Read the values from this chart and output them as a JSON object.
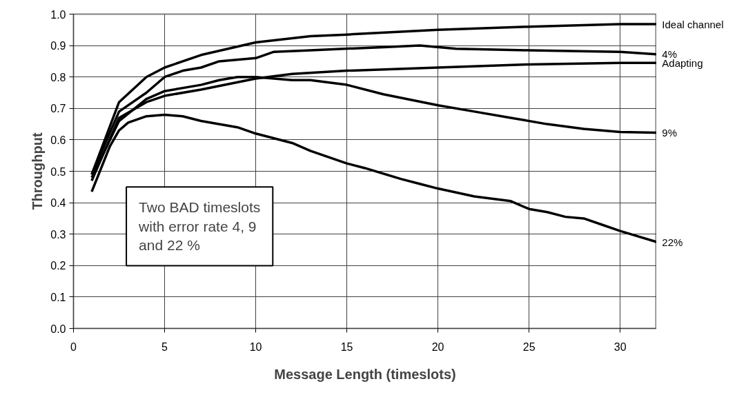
{
  "chart_data": {
    "type": "line",
    "xlabel": "Message Length (timeslots)",
    "ylabel": "Throughput",
    "xlim": [
      0,
      32
    ],
    "xticks": [
      0,
      5,
      10,
      15,
      20,
      25,
      30
    ],
    "ylim": [
      0,
      1
    ],
    "yticks": [
      {
        "value": 0,
        "label": "0.0"
      },
      0.1,
      0.2,
      0.3,
      0.4,
      0.5,
      0.6,
      0.7,
      0.8,
      0.9,
      {
        "value": 1,
        "label": "1.0"
      }
    ],
    "grid": true,
    "legend": false,
    "marker": "none",
    "line_style": "solid",
    "annotations": [
      "Two BAD timeslots\nwith error rate 4, 9\nand 22 %"
    ],
    "series": [
      {
        "name": "Ideal channel",
        "color": "#000000",
        "x": [
          1,
          2.5,
          4,
          5,
          7,
          10,
          13,
          15,
          20,
          25,
          30,
          32
        ],
        "values": [
          0.49,
          0.72,
          0.8,
          0.83,
          0.87,
          0.91,
          0.93,
          0.935,
          0.95,
          0.96,
          0.968,
          0.968
        ]
      },
      {
        "name": "4%",
        "color": "#000000",
        "x": [
          1,
          2.5,
          4,
          5,
          6,
          7,
          8,
          10,
          11,
          13,
          17,
          19,
          21,
          25,
          30,
          32
        ],
        "values": [
          0.49,
          0.69,
          0.75,
          0.8,
          0.82,
          0.83,
          0.85,
          0.86,
          0.88,
          0.885,
          0.895,
          0.9,
          0.89,
          0.885,
          0.88,
          0.872
        ]
      },
      {
        "name": "Adapting",
        "color": "#000000",
        "x": [
          1,
          2.5,
          4,
          5,
          7,
          10,
          12,
          15,
          20,
          25,
          30,
          32
        ],
        "values": [
          0.47,
          0.67,
          0.72,
          0.74,
          0.76,
          0.795,
          0.81,
          0.82,
          0.83,
          0.84,
          0.845,
          0.845
        ]
      },
      {
        "name": "9%",
        "color": "#000000",
        "x": [
          1,
          2.5,
          4,
          5,
          7,
          8,
          9,
          10,
          12,
          13,
          15,
          17,
          20,
          22,
          24,
          26,
          28,
          30,
          32
        ],
        "values": [
          0.48,
          0.66,
          0.73,
          0.755,
          0.775,
          0.79,
          0.8,
          0.8,
          0.79,
          0.79,
          0.775,
          0.745,
          0.71,
          0.69,
          0.67,
          0.65,
          0.635,
          0.625,
          0.623
        ]
      },
      {
        "name": "22%",
        "color": "#000000",
        "x": [
          1,
          2,
          2.5,
          3,
          4,
          5,
          6,
          7,
          9,
          10,
          12,
          13,
          15,
          16,
          18,
          19,
          20,
          22,
          24,
          25,
          26,
          27,
          28,
          29,
          30,
          32
        ],
        "values": [
          0.435,
          0.58,
          0.63,
          0.655,
          0.675,
          0.68,
          0.675,
          0.66,
          0.64,
          0.62,
          0.59,
          0.565,
          0.525,
          0.51,
          0.475,
          0.46,
          0.445,
          0.42,
          0.405,
          0.38,
          0.37,
          0.355,
          0.35,
          0.33,
          0.31,
          0.275
        ]
      }
    ]
  }
}
